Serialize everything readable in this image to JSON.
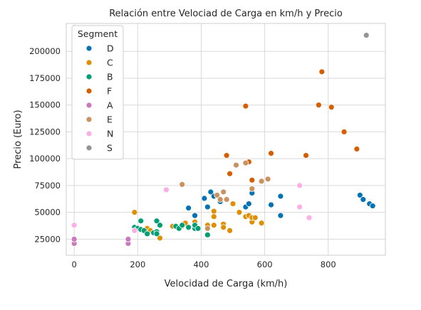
{
  "chart_data": {
    "type": "scatter",
    "title": "Relación entre Velociad de Carga en km/h y Precio",
    "xlabel": "Velocidad de Carga (km/h)",
    "ylabel": "Precio (Euro)",
    "xlim": [
      -25,
      980
    ],
    "ylim": [
      10000,
      226000
    ],
    "xticks": [
      0,
      200,
      400,
      600,
      800
    ],
    "yticks": [
      25000,
      50000,
      75000,
      100000,
      125000,
      150000,
      175000,
      200000
    ],
    "grid": true,
    "legend": {
      "title": "Segment",
      "placement": "top-left"
    },
    "series": [
      {
        "name": "D",
        "color": "#0173b2",
        "points": [
          [
            360,
            54000
          ],
          [
            380,
            47000
          ],
          [
            410,
            63000
          ],
          [
            430,
            69000
          ],
          [
            420,
            55000
          ],
          [
            440,
            65000
          ],
          [
            460,
            60000
          ],
          [
            540,
            55000
          ],
          [
            550,
            58000
          ],
          [
            560,
            68000
          ],
          [
            620,
            57000
          ],
          [
            650,
            65000
          ],
          [
            650,
            47000
          ],
          [
            900,
            66000
          ],
          [
            910,
            62000
          ],
          [
            930,
            58000
          ],
          [
            940,
            56000
          ]
        ]
      },
      {
        "name": "C",
        "color": "#de8f05",
        "points": [
          [
            190,
            50000
          ],
          [
            230,
            35000
          ],
          [
            240,
            33000
          ],
          [
            250,
            31000
          ],
          [
            270,
            26000
          ],
          [
            310,
            37000
          ],
          [
            340,
            37000
          ],
          [
            350,
            40000
          ],
          [
            380,
            41000
          ],
          [
            380,
            38000
          ],
          [
            420,
            38000
          ],
          [
            440,
            51000
          ],
          [
            440,
            46000
          ],
          [
            440,
            38000
          ],
          [
            470,
            39000
          ],
          [
            470,
            36000
          ],
          [
            490,
            33000
          ],
          [
            500,
            58000
          ],
          [
            520,
            50000
          ],
          [
            540,
            46000
          ],
          [
            550,
            47000
          ],
          [
            560,
            41000
          ],
          [
            560,
            45000
          ],
          [
            570,
            45000
          ],
          [
            590,
            40000
          ]
        ]
      },
      {
        "name": "B",
        "color": "#029e73",
        "points": [
          [
            190,
            36000
          ],
          [
            200,
            35000
          ],
          [
            210,
            42000
          ],
          [
            210,
            34000
          ],
          [
            220,
            33000
          ],
          [
            230,
            30000
          ],
          [
            250,
            31000
          ],
          [
            260,
            42000
          ],
          [
            260,
            32000
          ],
          [
            260,
            30000
          ],
          [
            270,
            38000
          ],
          [
            320,
            37000
          ],
          [
            330,
            35000
          ],
          [
            340,
            38000
          ],
          [
            360,
            36000
          ],
          [
            380,
            35000
          ],
          [
            380,
            38000
          ],
          [
            390,
            35000
          ],
          [
            420,
            29000
          ]
        ]
      },
      {
        "name": "F",
        "color": "#d55e00",
        "points": [
          [
            480,
            103000
          ],
          [
            490,
            86000
          ],
          [
            540,
            149000
          ],
          [
            550,
            97000
          ],
          [
            560,
            80000
          ],
          [
            620,
            105000
          ],
          [
            730,
            103000
          ],
          [
            770,
            150000
          ],
          [
            780,
            181000
          ],
          [
            810,
            148000
          ],
          [
            850,
            125000
          ],
          [
            890,
            109000
          ]
        ]
      },
      {
        "name": "A",
        "color": "#cc78bc",
        "points": [
          [
            0,
            21000
          ],
          [
            0,
            25000
          ],
          [
            170,
            21000
          ],
          [
            170,
            25000
          ]
        ]
      },
      {
        "name": "E",
        "color": "#ca9161",
        "points": [
          [
            340,
            76000
          ],
          [
            420,
            35000
          ],
          [
            450,
            66000
          ],
          [
            460,
            62000
          ],
          [
            470,
            69000
          ],
          [
            480,
            62000
          ],
          [
            510,
            94000
          ],
          [
            540,
            96000
          ],
          [
            560,
            72000
          ],
          [
            590,
            79000
          ],
          [
            610,
            81000
          ]
        ]
      },
      {
        "name": "N",
        "color": "#fbafe4",
        "points": [
          [
            0,
            38000
          ],
          [
            190,
            33000
          ],
          [
            290,
            71000
          ],
          [
            710,
            75000
          ],
          [
            710,
            55000
          ],
          [
            740,
            45000
          ]
        ]
      },
      {
        "name": "S",
        "color": "#949494",
        "points": [
          [
            920,
            215000
          ]
        ]
      }
    ]
  }
}
